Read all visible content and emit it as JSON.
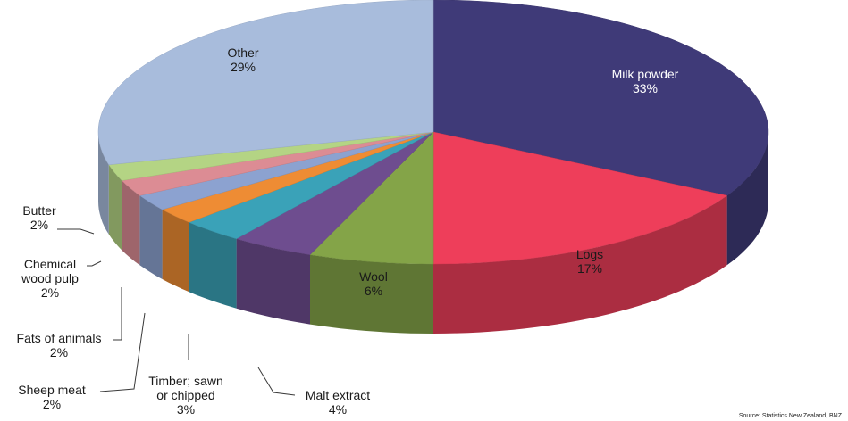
{
  "chart_data": {
    "type": "pie",
    "style": "3d",
    "slices": [
      {
        "name": "Milk powder",
        "label": "33%",
        "value": 33,
        "color": "#3f3a78"
      },
      {
        "name": "Logs",
        "label": "17%",
        "value": 17,
        "color": "#ee3e5a"
      },
      {
        "name": "Wool",
        "label": "6%",
        "value": 6,
        "color": "#84a448"
      },
      {
        "name": "Malt extract",
        "label": "4%",
        "value": 4,
        "color": "#6e4d8f"
      },
      {
        "name": "Timber; sawn or chipped",
        "label": "3%",
        "value": 3,
        "color": "#3aa2b8"
      },
      {
        "name": "Sheep meat",
        "label": "2%",
        "value": 2,
        "color": "#ee8c34"
      },
      {
        "name": "Fats of animals",
        "label": "2%",
        "value": 2,
        "color": "#8ca2d0"
      },
      {
        "name": "Chemical wood pulp",
        "label": "2%",
        "value": 2,
        "color": "#dc8c94"
      },
      {
        "name": "Butter",
        "label": "2%",
        "value": 2,
        "color": "#b4d484"
      },
      {
        "name": "Other",
        "label": "29%",
        "value": 29,
        "color": "#a8bcdc"
      }
    ],
    "source": "Source: Statistics New Zealand, BNZ"
  }
}
